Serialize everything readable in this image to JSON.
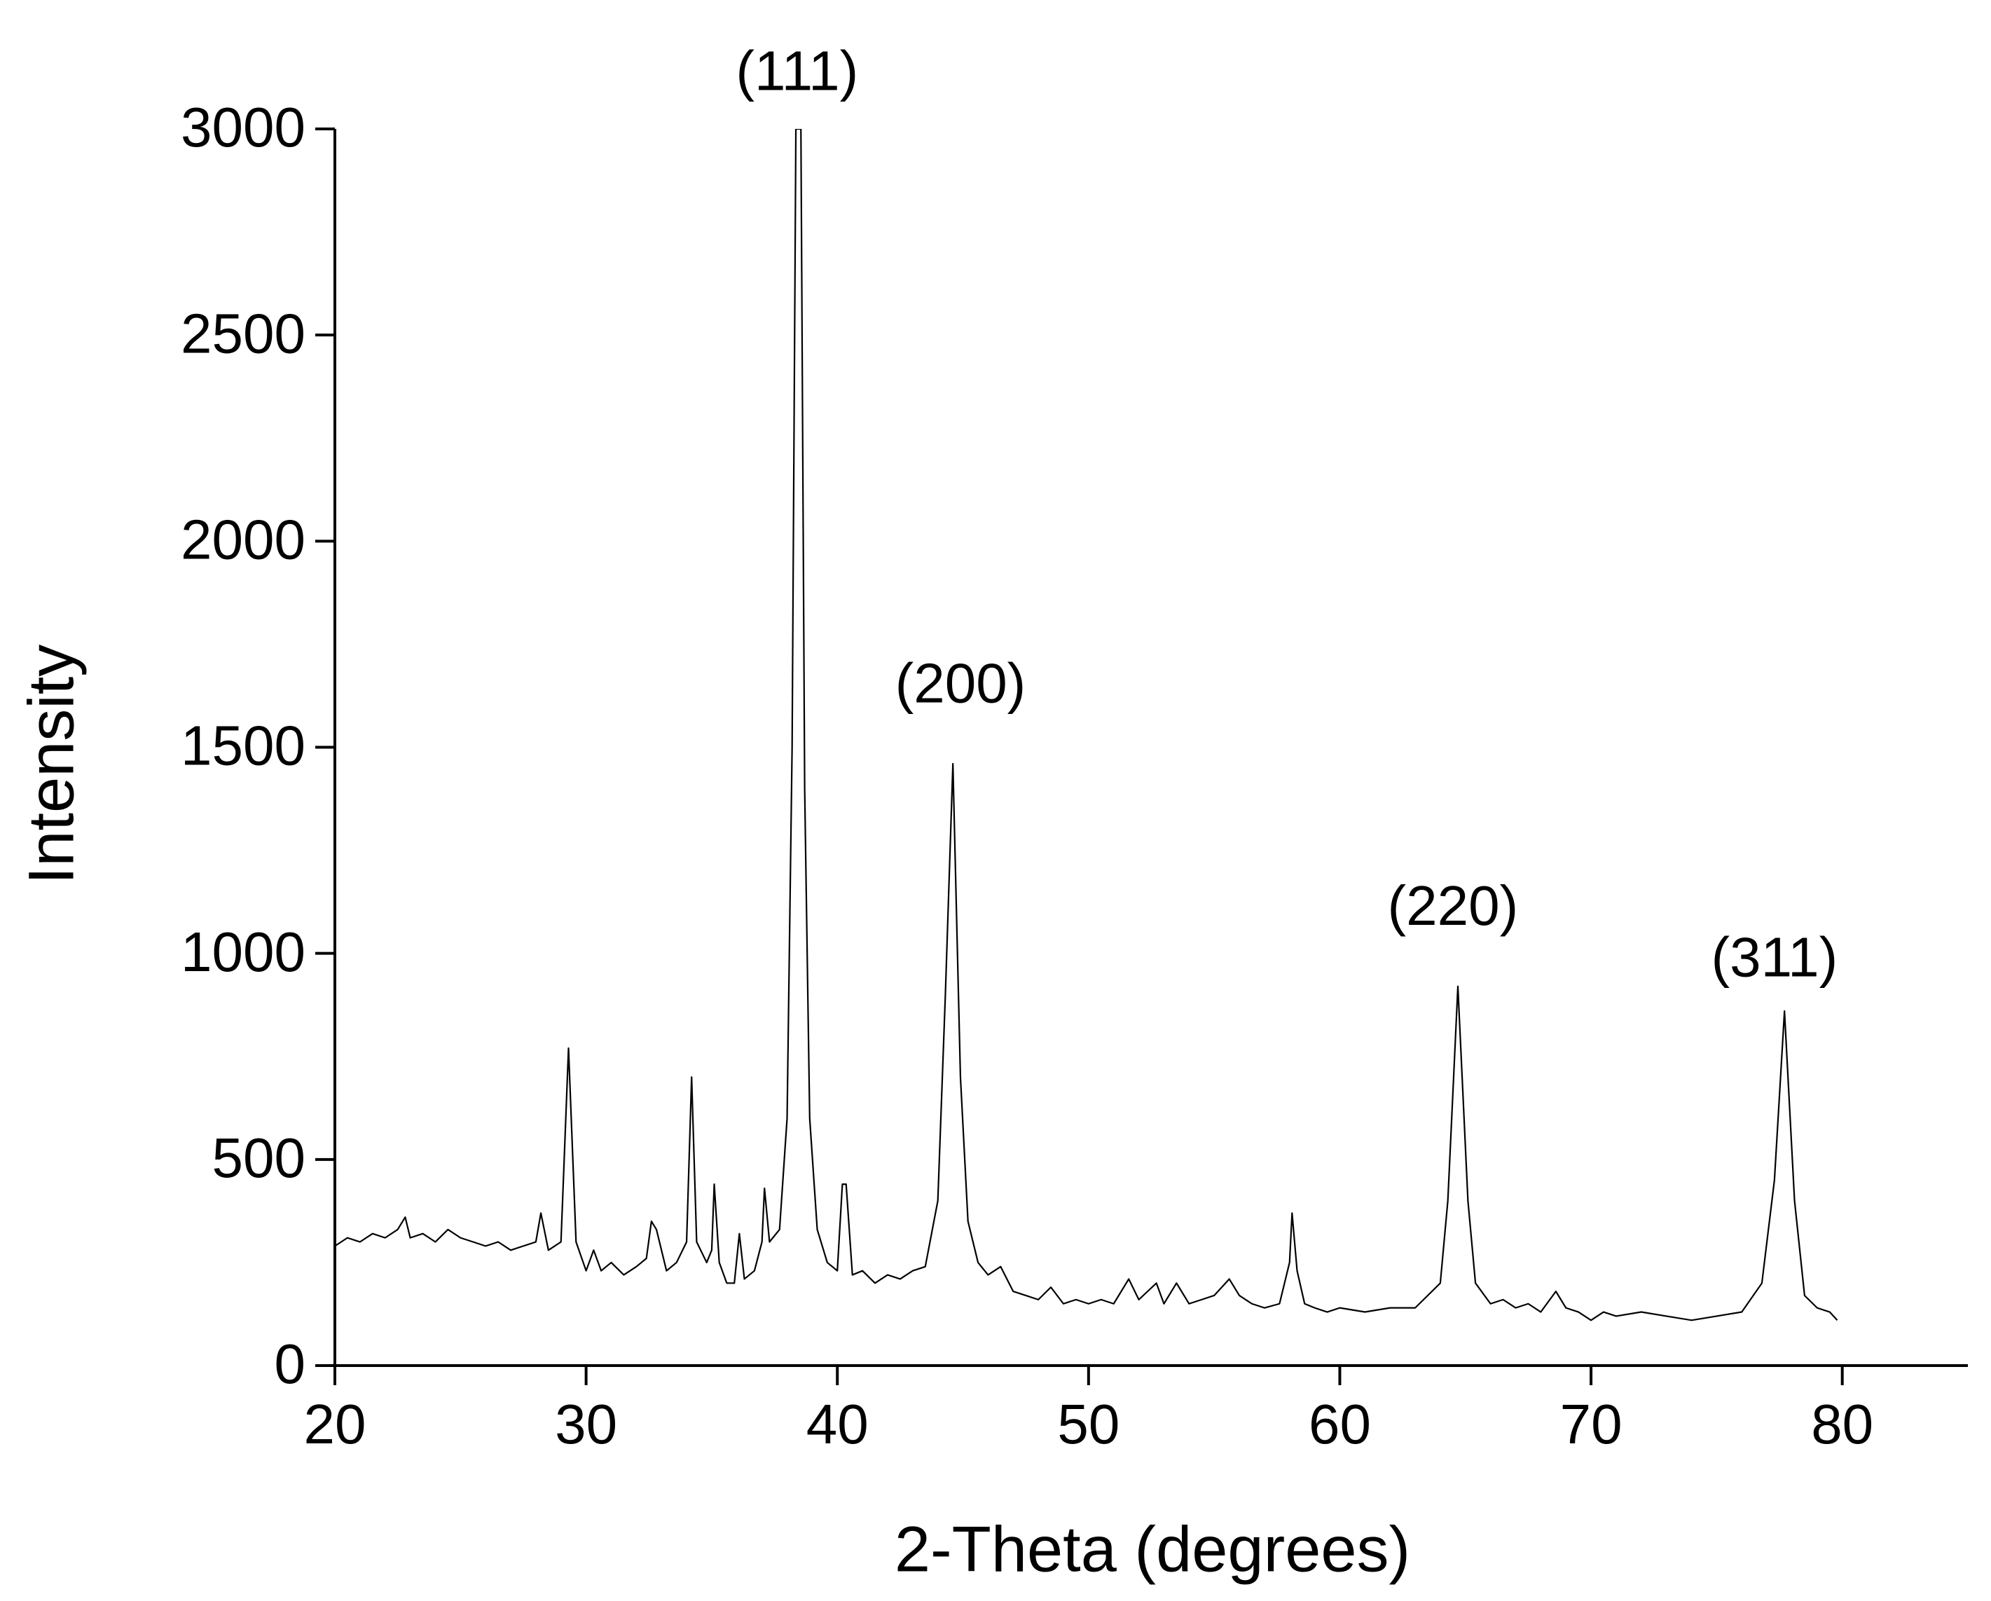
{
  "chart_data": {
    "type": "line",
    "x_label": "2-Theta (degrees)",
    "y_label": "Intensity",
    "xlim": [
      20,
      85
    ],
    "xticks": [
      20,
      30,
      40,
      50,
      60,
      70,
      80
    ],
    "ylim": [
      0,
      3000
    ],
    "yticks": [
      0,
      500,
      1000,
      1500,
      2000,
      2500,
      3000
    ],
    "grid": false,
    "series": [
      {
        "name": "Intensity",
        "color": "#000000",
        "x": [
          20,
          20.5,
          21,
          21.5,
          22,
          22.5,
          22.8,
          23,
          23.5,
          24,
          24.5,
          25,
          25.5,
          26,
          26.5,
          27,
          27.5,
          28,
          28.2,
          28.5,
          29,
          29.3,
          29.6,
          30,
          30.3,
          30.6,
          31,
          31.5,
          32,
          32.4,
          32.6,
          32.8,
          33.2,
          33.6,
          34,
          34.2,
          34.4,
          34.8,
          35,
          35.1,
          35.3,
          35.6,
          35.9,
          36.1,
          36.3,
          36.7,
          37,
          37.1,
          37.3,
          37.7,
          38,
          38.2,
          38.35,
          38.55,
          38.7,
          38.9,
          39.2,
          39.6,
          40,
          40.2,
          40.35,
          40.6,
          41,
          41.5,
          42,
          42.5,
          43,
          43.5,
          44,
          44.3,
          44.6,
          44.9,
          45.2,
          45.6,
          46,
          46.5,
          47,
          47.5,
          48,
          48.5,
          49,
          49.5,
          50,
          50.5,
          51,
          51.6,
          52,
          52.7,
          53,
          53.5,
          54,
          54.5,
          55,
          55.6,
          56,
          56.5,
          57,
          57.6,
          58,
          58.1,
          58.3,
          58.6,
          59,
          59.5,
          60,
          61,
          62,
          63,
          64,
          64.3,
          64.7,
          65.1,
          65.4,
          66,
          66.5,
          67,
          67.5,
          68,
          68.6,
          69,
          69.5,
          70,
          70.5,
          71,
          72,
          73,
          74,
          75,
          76,
          76.8,
          77.3,
          77.7,
          78.1,
          78.5,
          79,
          79.5,
          79.8
        ],
        "values": [
          290,
          310,
          300,
          320,
          310,
          330,
          360,
          310,
          320,
          300,
          330,
          310,
          300,
          290,
          300,
          280,
          290,
          300,
          370,
          280,
          300,
          770,
          300,
          230,
          280,
          230,
          250,
          220,
          240,
          260,
          350,
          330,
          230,
          250,
          300,
          700,
          300,
          250,
          280,
          440,
          250,
          200,
          200,
          320,
          210,
          230,
          300,
          430,
          300,
          330,
          600,
          1500,
          3000,
          3000,
          1400,
          600,
          330,
          250,
          230,
          440,
          440,
          220,
          230,
          200,
          220,
          210,
          230,
          240,
          400,
          900,
          1460,
          700,
          350,
          250,
          220,
          240,
          180,
          170,
          160,
          190,
          150,
          160,
          150,
          160,
          150,
          210,
          160,
          200,
          150,
          200,
          150,
          160,
          170,
          210,
          170,
          150,
          140,
          150,
          250,
          370,
          230,
          150,
          140,
          130,
          140,
          130,
          140,
          140,
          200,
          400,
          920,
          400,
          200,
          150,
          160,
          140,
          150,
          130,
          180,
          140,
          130,
          110,
          130,
          120,
          130,
          120,
          110,
          120,
          130,
          200,
          450,
          860,
          400,
          170,
          140,
          130,
          110
        ]
      }
    ],
    "annotations": [
      {
        "text": "(111)",
        "x": 38.4,
        "y": 3130
      },
      {
        "text": "(200)",
        "x": 44.9,
        "y": 1645
      },
      {
        "text": "(220)",
        "x": 64.5,
        "y": 1105
      },
      {
        "text": "(311)",
        "x": 77.3,
        "y": 980
      }
    ]
  }
}
